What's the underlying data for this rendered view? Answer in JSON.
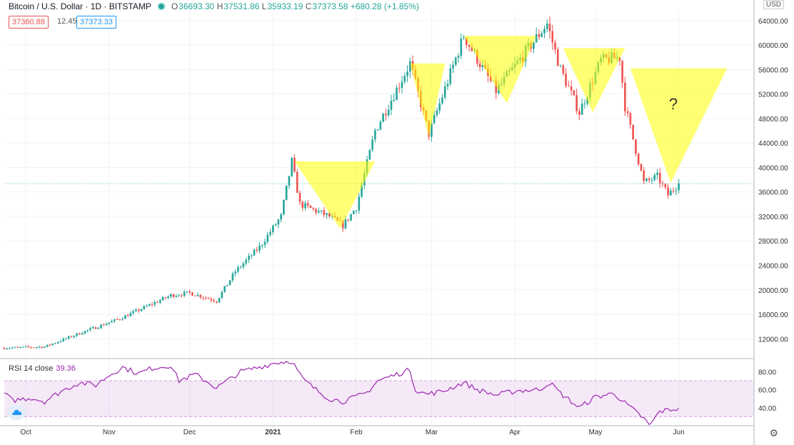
{
  "legend": {
    "symbol": "Bitcoin / U.S. Dollar · 1D · BITSTAMP",
    "open_label": "O",
    "open": "36693.30",
    "high_label": "H",
    "high": "37531.86",
    "low_label": "L",
    "low": "35933.19",
    "close_label": "C",
    "close": "37373.58",
    "change": "+680.28 (+1.85%)"
  },
  "prices": {
    "bid": "37360.88",
    "spread": "12.45",
    "ask": "37373.33"
  },
  "currency": "USD",
  "rsi": {
    "label": "RSI 14 close",
    "value": "39.36"
  },
  "annotation": "?",
  "colors": {
    "up": "#26a69a",
    "down": "#ef5350",
    "rsi": "#9c27b0",
    "triangle": "#ffff00"
  },
  "chart_data": [
    {
      "type": "candlestick",
      "x_tick_labels": [
        "Oct",
        "Nov",
        "Dec",
        "2021",
        "Feb",
        "Mar",
        "Apr",
        "May",
        "Jun"
      ],
      "y_tick_labels": [
        "12000.00",
        "16000.00",
        "20000.00",
        "24000.00",
        "28000.00",
        "32000.00",
        "36000.00",
        "40000.00",
        "44000.00",
        "48000.00",
        "52000.00",
        "56000.00",
        "60000.00",
        "64000.00"
      ],
      "ylim": [
        9000,
        65500
      ],
      "scale": "linear",
      "anchors": [
        [
          "2020-09-23",
          10500
        ],
        [
          "2020-10-08",
          10700
        ],
        [
          "2020-10-21",
          12900
        ],
        [
          "2020-11-05",
          15300
        ],
        [
          "2020-11-24",
          19100
        ],
        [
          "2020-12-01",
          19500
        ],
        [
          "2020-12-11",
          18200
        ],
        [
          "2020-12-18",
          23000
        ],
        [
          "2020-12-27",
          27000
        ],
        [
          "2021-01-04",
          32000
        ],
        [
          "2021-01-08",
          41000
        ],
        [
          "2021-01-11",
          34000
        ],
        [
          "2021-01-22",
          32000
        ],
        [
          "2021-01-27",
          30500
        ],
        [
          "2021-02-01",
          33500
        ],
        [
          "2021-02-08",
          46000
        ],
        [
          "2021-02-21",
          57000
        ],
        [
          "2021-02-28",
          45500
        ],
        [
          "2021-03-13",
          61500
        ],
        [
          "2021-03-25",
          52500
        ],
        [
          "2021-04-13",
          63500
        ],
        [
          "2021-04-18",
          56000
        ],
        [
          "2021-04-25",
          49000
        ],
        [
          "2021-05-03",
          57500
        ],
        [
          "2021-05-10",
          58000
        ],
        [
          "2021-05-12",
          50000
        ],
        [
          "2021-05-19",
          37500
        ],
        [
          "2021-05-24",
          38500
        ],
        [
          "2021-05-28",
          35500
        ],
        [
          "2021-06-01",
          37374
        ]
      ],
      "triangles": [
        {
          "top_start": "2021-01-09",
          "top_end": "2021-02-08",
          "top_price": 41000,
          "apex": "2021-01-26",
          "apex_price": 30000
        },
        {
          "top_start": "2021-02-21",
          "top_end": "2021-03-06",
          "top_price": 57000,
          "apex": "2021-02-28",
          "apex_price": 45000
        },
        {
          "top_start": "2021-03-13",
          "top_end": "2021-04-09",
          "top_price": 61500,
          "apex": "2021-03-29",
          "apex_price": 50500
        },
        {
          "top_start": "2021-04-19",
          "top_end": "2021-05-12",
          "top_price": 59500,
          "apex": "2021-04-30",
          "apex_price": 49000
        },
        {
          "top_start": "2021-05-14",
          "top_end": "2021-06-19",
          "top_price": 56200,
          "apex": "2021-05-29",
          "apex_price": 37500
        }
      ],
      "current_price": 37373.58
    },
    {
      "type": "line",
      "series": [
        {
          "name": "RSI 14 close",
          "last": 39.36
        }
      ],
      "y_tick_labels": [
        "40.00",
        "60.00",
        "80.00"
      ],
      "ylim": [
        20,
        93
      ],
      "band": [
        30,
        70
      ],
      "anchors": [
        [
          "2020-09-23",
          56
        ],
        [
          "2020-09-26",
          48
        ],
        [
          "2020-10-03",
          51
        ],
        [
          "2020-10-08",
          47
        ],
        [
          "2020-10-14",
          58
        ],
        [
          "2020-10-21",
          68
        ],
        [
          "2020-10-27",
          65
        ],
        [
          "2020-11-01",
          76
        ],
        [
          "2020-11-06",
          85
        ],
        [
          "2020-11-12",
          78
        ],
        [
          "2020-11-17",
          84
        ],
        [
          "2020-11-24",
          87
        ],
        [
          "2020-11-27",
          70
        ],
        [
          "2020-12-03",
          77
        ],
        [
          "2020-12-08",
          68
        ],
        [
          "2020-12-11",
          62
        ],
        [
          "2020-12-16",
          72
        ],
        [
          "2020-12-20",
          80
        ],
        [
          "2020-12-28",
          86
        ],
        [
          "2021-01-02",
          90
        ],
        [
          "2021-01-08",
          92
        ],
        [
          "2021-01-12",
          72
        ],
        [
          "2021-01-17",
          60
        ],
        [
          "2021-01-22",
          50
        ],
        [
          "2021-01-27",
          47
        ],
        [
          "2021-02-01",
          52
        ],
        [
          "2021-02-05",
          57
        ],
        [
          "2021-02-09",
          70
        ],
        [
          "2021-02-14",
          75
        ],
        [
          "2021-02-21",
          82
        ],
        [
          "2021-02-23",
          60
        ],
        [
          "2021-02-27",
          55
        ],
        [
          "2021-03-05",
          58
        ],
        [
          "2021-03-13",
          68
        ],
        [
          "2021-03-18",
          60
        ],
        [
          "2021-03-25",
          54
        ],
        [
          "2021-04-02",
          59
        ],
        [
          "2021-04-10",
          60
        ],
        [
          "2021-04-14",
          68
        ],
        [
          "2021-04-18",
          56
        ],
        [
          "2021-04-25",
          40
        ],
        [
          "2021-05-01",
          52
        ],
        [
          "2021-05-08",
          56
        ],
        [
          "2021-05-12",
          45
        ],
        [
          "2021-05-19",
          28
        ],
        [
          "2021-05-21",
          20
        ],
        [
          "2021-05-25",
          36
        ],
        [
          "2021-06-01",
          39.36
        ]
      ]
    }
  ]
}
